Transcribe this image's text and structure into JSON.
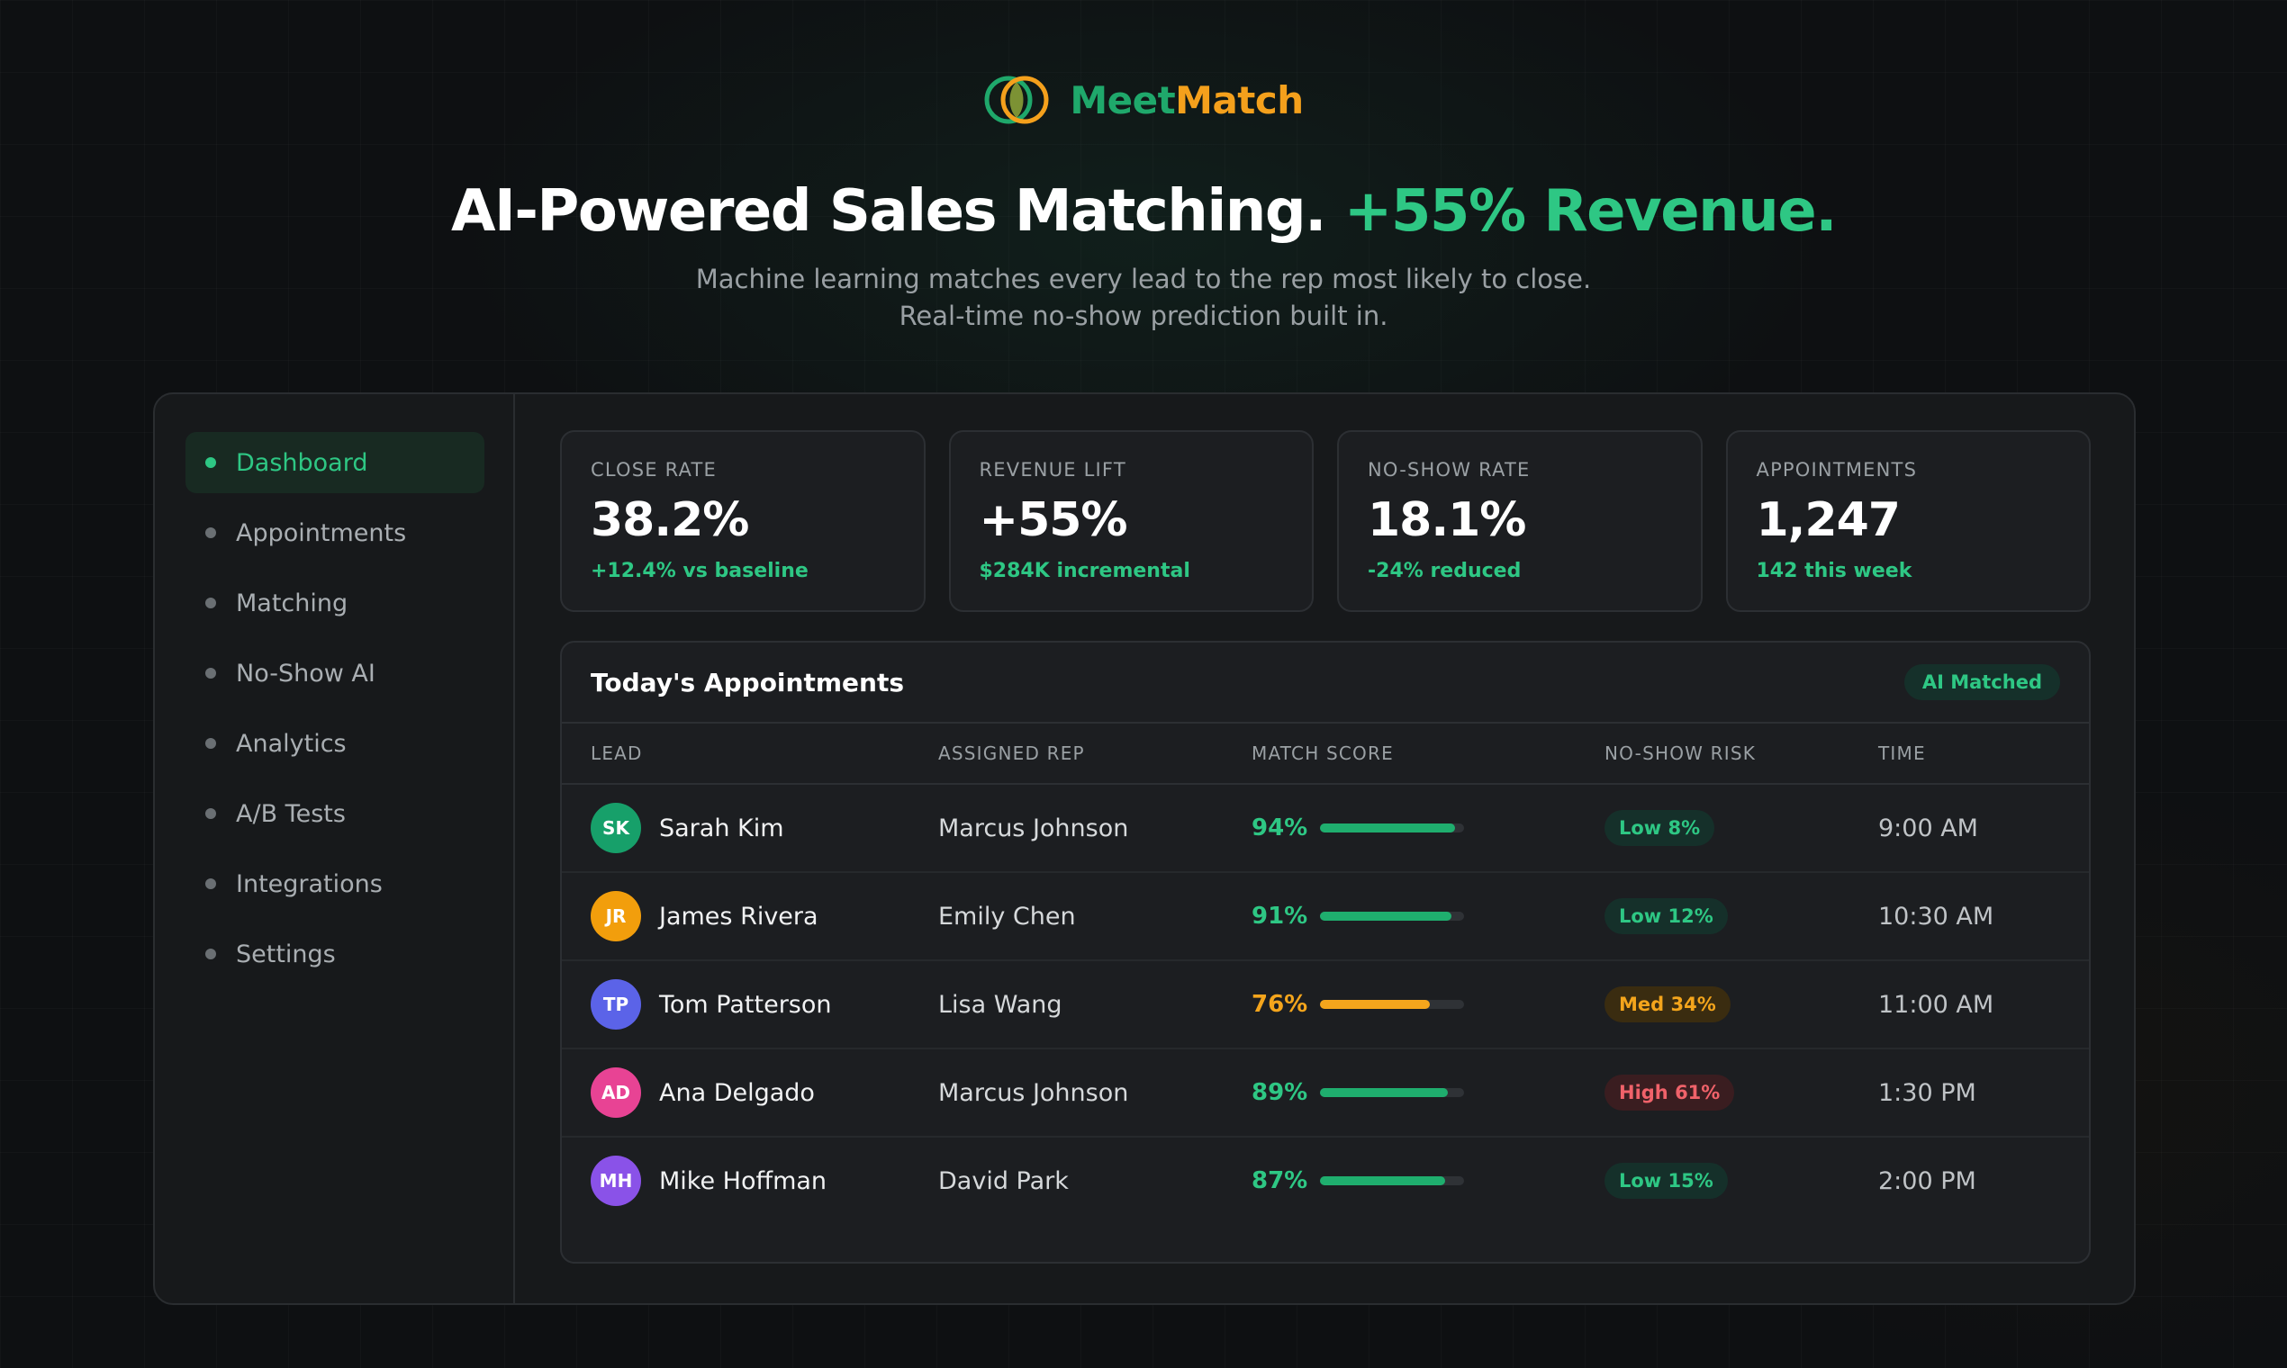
{
  "brand": {
    "name_part1": "Meet",
    "name_part2": "Match"
  },
  "hero": {
    "headline": "AI-Powered Sales Matching.",
    "headline_accent": "+55% Revenue.",
    "subhead": "Machine learning matches every lead to the rep most likely to close. Real-time no-show prediction built in."
  },
  "sidebar": {
    "items": [
      {
        "label": "Dashboard",
        "active": true
      },
      {
        "label": "Appointments"
      },
      {
        "label": "Matching"
      },
      {
        "label": "No-Show AI"
      },
      {
        "label": "Analytics"
      },
      {
        "label": "A/B Tests"
      },
      {
        "label": "Integrations"
      },
      {
        "label": "Settings"
      }
    ]
  },
  "stats": [
    {
      "label": "CLOSE RATE",
      "value": "38.2%",
      "delta": "+12.4% vs baseline"
    },
    {
      "label": "REVENUE LIFT",
      "value": "+55%",
      "delta": "$284K incremental"
    },
    {
      "label": "NO-SHOW RATE",
      "value": "18.1%",
      "delta": "-24% reduced"
    },
    {
      "label": "APPOINTMENTS",
      "value": "1,247",
      "delta": "142 this week"
    }
  ],
  "appointments": {
    "title": "Today's Appointments",
    "badge": "AI Matched",
    "columns": {
      "lead": "LEAD",
      "rep": "ASSIGNED REP",
      "score": "MATCH SCORE",
      "risk": "NO-SHOW RISK",
      "time": "TIME"
    },
    "rows": [
      {
        "initials": "SK",
        "avatar_color": "#17a06a",
        "lead": "Sarah Kim",
        "rep": "Marcus Johnson",
        "score": "94%",
        "score_fraction": 0.94,
        "score_color": "#2ec784",
        "risk": "Low 8%",
        "risk_level": "low",
        "time": "9:00 AM"
      },
      {
        "initials": "JR",
        "avatar_color": "#f29e0c",
        "lead": "James Rivera",
        "rep": "Emily Chen",
        "score": "91%",
        "score_fraction": 0.91,
        "score_color": "#2ec784",
        "risk": "Low 12%",
        "risk_level": "low",
        "time": "10:30 AM"
      },
      {
        "initials": "TP",
        "avatar_color": "#5b63e8",
        "lead": "Tom Patterson",
        "rep": "Lisa Wang",
        "score": "76%",
        "score_fraction": 0.76,
        "score_color": "#f4a51c",
        "risk": "Med 34%",
        "risk_level": "med",
        "time": "11:00 AM"
      },
      {
        "initials": "AD",
        "avatar_color": "#e84394",
        "lead": "Ana Delgado",
        "rep": "Marcus Johnson",
        "score": "89%",
        "score_fraction": 0.89,
        "score_color": "#2ec784",
        "risk": "High 61%",
        "risk_level": "high",
        "time": "1:30 PM"
      },
      {
        "initials": "MH",
        "avatar_color": "#8a52e8",
        "lead": "Mike Hoffman",
        "rep": "David Park",
        "score": "87%",
        "score_fraction": 0.87,
        "score_color": "#2ec784",
        "risk": "Low 15%",
        "risk_level": "low",
        "time": "2:00 PM"
      }
    ]
  },
  "colors": {
    "accent_green": "#2ec784",
    "brand_orange": "#f4a01c",
    "bar_green": "#1fae6e",
    "bar_orange": "#f4a51c",
    "risk_low_bg": "#15302a",
    "risk_low_fg": "#2ec784",
    "risk_med_bg": "#3a2c10",
    "risk_med_fg": "#f4a51c",
    "risk_high_bg": "#3a1d20",
    "risk_high_fg": "#f0626a"
  }
}
